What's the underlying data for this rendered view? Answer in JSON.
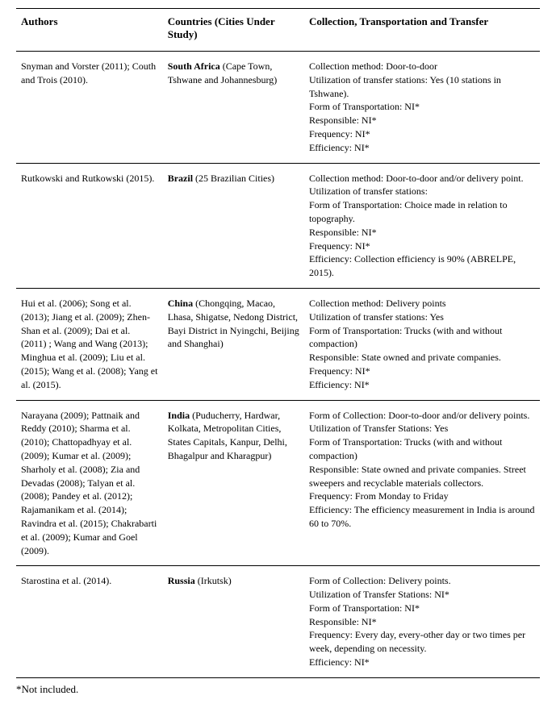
{
  "headers": {
    "authors": "Authors",
    "countries": "Countries (Cities Under Study)",
    "collection": "Collection, Transportation and Transfer"
  },
  "rows": [
    {
      "authors": "Snyman and Vorster (2011); Couth and Trois (2010).",
      "country": "South Africa",
      "cities": " (Cape Town, Tshwane and Johannesburg)",
      "details": [
        "Collection method: Door-to-door",
        "Utilization of transfer stations: Yes (10 stations in Tshwane).",
        "Form of Transportation: NI*",
        "Responsible: NI*",
        "Frequency: NI*",
        "Efficiency: NI*"
      ]
    },
    {
      "authors": "Rutkowski and Rutkowski (2015).",
      "country": "Brazil",
      "cities": " (25 Brazilian Cities)",
      "details": [
        "Collection method: Door-to-door and/or delivery point.",
        "Utilization of transfer stations:",
        "Form of Transportation: Choice made in relation to topography.",
        "Responsible: NI*",
        "Frequency: NI*",
        "Efficiency: Collection efficiency is 90% (ABRELPE, 2015)."
      ]
    },
    {
      "authors": "Hui et al. (2006); Song et al. (2013); Jiang et al. (2009); Zhen-Shan et al. (2009); Dai et al. (2011) ; Wang and Wang (2013); Minghua et al. (2009); Liu et al. (2015); Wang et al. (2008); Yang et al. (2015).",
      "country": "China",
      "cities": " (Chongqing, Macao, Lhasa, Shigatse, Nedong District, Bayi District in Nyingchi, Beijing and Shanghai)",
      "details": [
        "Collection method: Delivery points",
        "Utilization of transfer stations: Yes",
        "Form of Transportation: Trucks (with and without compaction)",
        "Responsible: State owned and private companies.",
        "Frequency: NI*",
        "Efficiency: NI*"
      ]
    },
    {
      "authors": "Narayana (2009); Pattnaik and Reddy (2010); Sharma et al. (2010); Chattopadhyay et al. (2009); Kumar et al. (2009); Sharholy et al. (2008); Zia and Devadas (2008); Talyan et al. (2008); Pandey et al. (2012); Rajamanikam et al. (2014); Ravindra et al. (2015); Chakrabarti et al. (2009); Kumar and Goel (2009).",
      "country": "India",
      "cities": " (Puducherry, Hardwar, Kolkata, Metropolitan Cities, States Capitals, Kanpur, Delhi, Bhagalpur and Kharagpur)",
      "details": [
        "Form of Collection: Door-to-door and/or delivery points.",
        "Utilization of Transfer Stations: Yes",
        "Form of Transportation: Trucks (with and without compaction)",
        "Responsible: State owned and private companies. Street sweepers and recyclable materials collectors.",
        "Frequency: From Monday to Friday",
        "Efficiency: The efficiency measurement in India is around 60 to 70%."
      ]
    },
    {
      "authors": "Starostina et al. (2014).",
      "country": "Russia",
      "cities": " (Irkutsk)",
      "details": [
        "Form of Collection: Delivery points.",
        "Utilization of Transfer Stations: NI*",
        "Form of Transportation: NI*",
        "Responsible: NI*",
        "Frequency: Every day, every-other day or two times per week, depending on necessity.",
        "Efficiency: NI*"
      ]
    }
  ],
  "footnote": "*Not included."
}
